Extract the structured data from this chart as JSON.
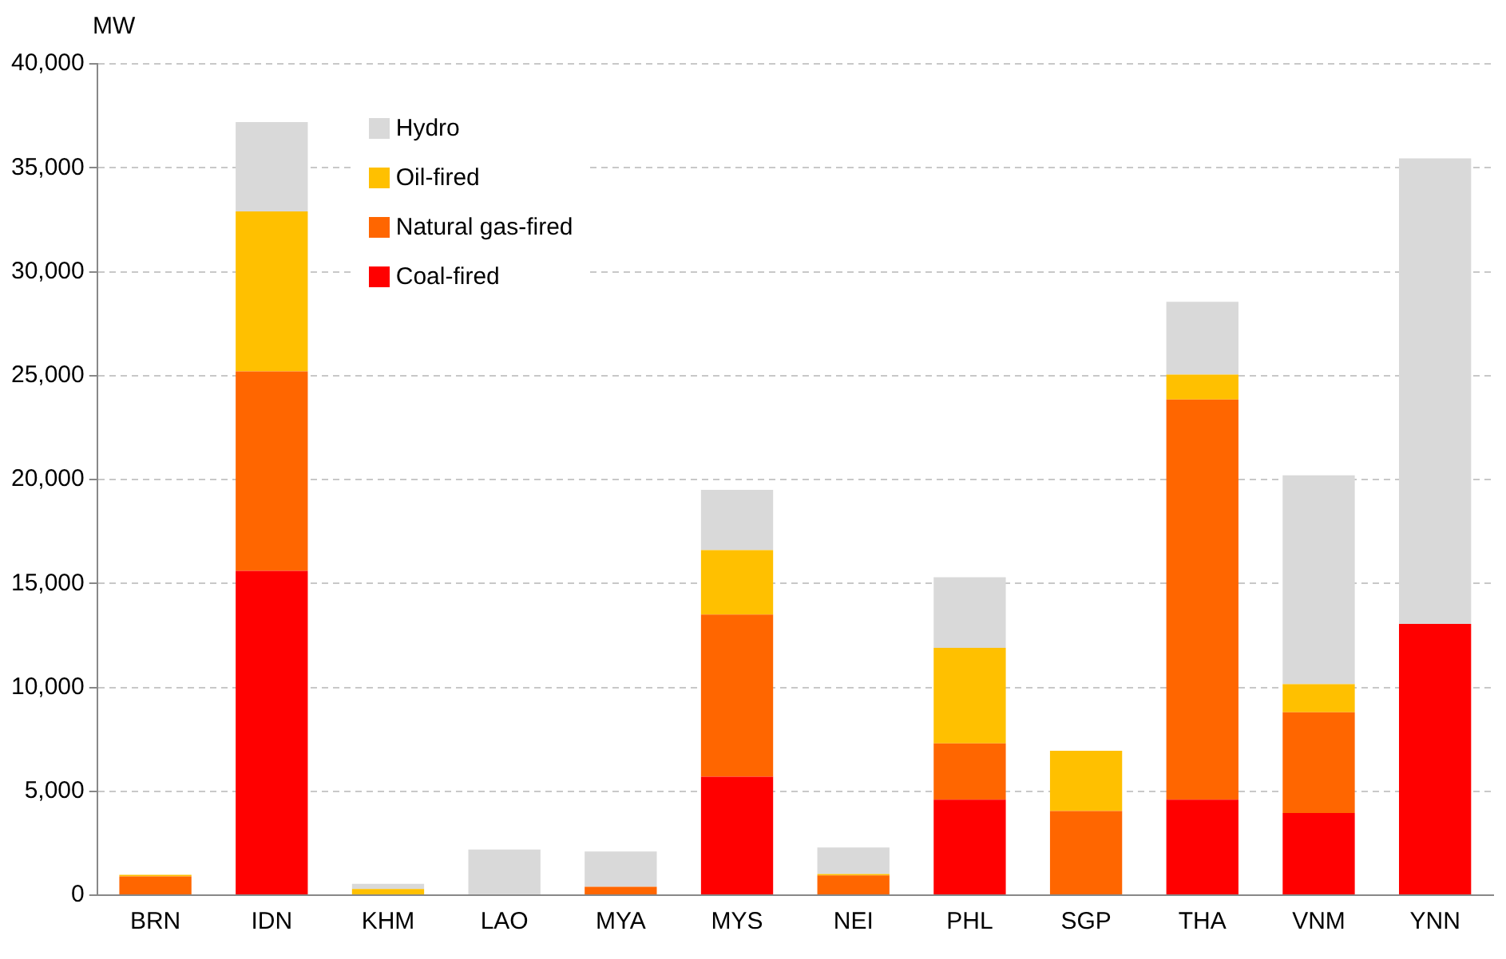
{
  "chart_data": {
    "type": "bar",
    "ylabel": "MW",
    "stacked": true,
    "categories": [
      "BRN",
      "IDN",
      "KHM",
      "LAO",
      "MYA",
      "MYS",
      "NEI",
      "PHL",
      "SGP",
      "THA",
      "VNM",
      "YNN"
    ],
    "series": [
      {
        "name": "Coal-fired",
        "color": "#ff0000",
        "values": [
          0,
          15600,
          0,
          0,
          0,
          5700,
          0,
          4600,
          0,
          4600,
          3950,
          13050
        ]
      },
      {
        "name": "Natural gas-fired",
        "color": "#ff6600",
        "values": [
          900,
          9600,
          0,
          0,
          400,
          7800,
          950,
          2700,
          4050,
          19250,
          4850,
          0
        ]
      },
      {
        "name": "Oil-fired",
        "color": "#ffc000",
        "values": [
          80,
          7700,
          300,
          0,
          0,
          3100,
          70,
          4600,
          2900,
          1200,
          1350,
          0
        ]
      },
      {
        "name": "Hydro",
        "color": "#d9d9d9",
        "values": [
          0,
          4300,
          250,
          2200,
          1700,
          2900,
          1270,
          3400,
          0,
          3500,
          10050,
          22400
        ]
      }
    ],
    "ylim": [
      0,
      40000
    ],
    "yticks": [
      0,
      {
        "value": 5000,
        "label": "5,000"
      },
      {
        "value": 10000,
        "label": "10,000"
      },
      {
        "value": 15000,
        "label": "15,000"
      },
      {
        "value": 20000,
        "label": "20,000"
      },
      {
        "value": 25000,
        "label": "25,000"
      },
      {
        "value": 30000,
        "label": "30,000"
      },
      {
        "value": 35000,
        "label": "35,000"
      },
      {
        "value": 40000,
        "label": "40,000"
      }
    ],
    "grid": "y",
    "legend": "top left"
  }
}
